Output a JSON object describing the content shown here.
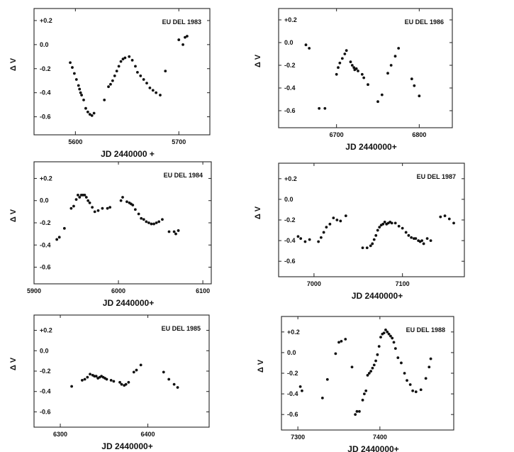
{
  "chart_data": [
    {
      "type": "scatter",
      "title": "EU DEL 1983",
      "xlabel": "JD 2440000 +",
      "ylabel": "Δ V",
      "xlim": [
        5560,
        5730
      ],
      "ylim": [
        0.3,
        -0.75
      ],
      "xticks": [
        5600,
        5700
      ],
      "yticks": [
        -0.6,
        -0.4,
        -0.2,
        0.0,
        0.2
      ],
      "ytick_labels": [
        "-0.6",
        "-0.4",
        "-0.2",
        "0.0",
        "+0.2"
      ],
      "x": [
        5595,
        5597,
        5599,
        5601,
        5603,
        5604,
        5605,
        5606,
        5608,
        5610,
        5612,
        5614,
        5616,
        5618,
        5628,
        5632,
        5634,
        5636,
        5638,
        5640,
        5642,
        5644,
        5646,
        5648,
        5652,
        5655,
        5658,
        5660,
        5663,
        5666,
        5669,
        5672,
        5675,
        5678,
        5682,
        5687,
        5700,
        5704,
        5706,
        5708
      ],
      "y": [
        -0.15,
        -0.19,
        -0.24,
        -0.29,
        -0.34,
        -0.37,
        -0.4,
        -0.42,
        -0.46,
        -0.53,
        -0.56,
        -0.58,
        -0.59,
        -0.57,
        -0.46,
        -0.35,
        -0.33,
        -0.3,
        -0.26,
        -0.22,
        -0.18,
        -0.14,
        -0.12,
        -0.11,
        -0.1,
        -0.13,
        -0.18,
        -0.23,
        -0.26,
        -0.29,
        -0.32,
        -0.36,
        -0.38,
        -0.4,
        -0.42,
        -0.22,
        0.04,
        0.0,
        0.06,
        0.07
      ]
    },
    {
      "type": "scatter",
      "title": "EU DEL 1986",
      "xlabel": "JD 2440000+",
      "ylabel": "Δ V",
      "xlim": [
        6630,
        6840
      ],
      "ylim": [
        0.3,
        -0.75
      ],
      "xticks": [
        6700,
        6800
      ],
      "yticks": [
        -0.6,
        -0.4,
        -0.2,
        0.0,
        0.2
      ],
      "ytick_labels": [
        "-0.6",
        "-0.4",
        "-0.2",
        "0.0",
        "+0.2"
      ],
      "x": [
        6663,
        6667,
        6679,
        6686,
        6700,
        6702,
        6704,
        6707,
        6710,
        6712,
        6717,
        6719,
        6721,
        6722,
        6724,
        6726,
        6731,
        6733,
        6738,
        6750,
        6755,
        6762,
        6766,
        6771,
        6775,
        6791,
        6794,
        6800
      ],
      "y": [
        -0.02,
        -0.05,
        -0.58,
        -0.58,
        -0.28,
        -0.22,
        -0.18,
        -0.14,
        -0.1,
        -0.07,
        -0.17,
        -0.2,
        -0.22,
        -0.24,
        -0.23,
        -0.25,
        -0.28,
        -0.31,
        -0.37,
        -0.52,
        -0.46,
        -0.27,
        -0.2,
        -0.12,
        -0.05,
        -0.32,
        -0.38,
        -0.47
      ]
    },
    {
      "type": "scatter",
      "title": "EU DEL 1984",
      "xlabel": "JD 2440000+",
      "ylabel": "Δ V",
      "xlim": [
        5900,
        6110
      ],
      "ylim": [
        0.35,
        -0.75
      ],
      "xticks": [
        5900,
        6000,
        6100
      ],
      "yticks": [
        -0.6,
        -0.4,
        -0.2,
        0.0,
        0.2
      ],
      "ytick_labels": [
        "-0.6",
        "-0.4",
        "-0.2",
        "0.0",
        "+0.2"
      ],
      "x": [
        5927,
        5930,
        5936,
        5944,
        5947,
        5950,
        5952,
        5954,
        5956,
        5958,
        5960,
        5962,
        5964,
        5966,
        5969,
        5972,
        5976,
        5981,
        5987,
        5990,
        6003,
        6005,
        6010,
        6013,
        6015,
        6017,
        6020,
        6024,
        6027,
        6030,
        6033,
        6036,
        6039,
        6042,
        6045,
        6048,
        6052,
        6060,
        6066,
        6068,
        6071
      ],
      "y": [
        -0.35,
        -0.33,
        -0.25,
        -0.07,
        -0.05,
        0.01,
        0.05,
        0.03,
        0.05,
        0.05,
        0.05,
        0.03,
        0.0,
        -0.02,
        -0.06,
        -0.1,
        -0.09,
        -0.07,
        -0.07,
        -0.06,
        0.0,
        0.03,
        -0.01,
        -0.02,
        -0.03,
        -0.04,
        -0.08,
        -0.12,
        -0.16,
        -0.17,
        -0.19,
        -0.2,
        -0.21,
        -0.21,
        -0.2,
        -0.19,
        -0.17,
        -0.28,
        -0.28,
        -0.3,
        -0.27
      ]
    },
    {
      "type": "scatter",
      "title": "EU DEL 1987",
      "xlabel": "JD 2440000+",
      "ylabel": "Δ V",
      "xlim": [
        6960,
        7170
      ],
      "ylim": [
        0.35,
        -0.75
      ],
      "xticks": [
        7000,
        7100
      ],
      "yticks": [
        -0.6,
        -0.4,
        -0.2,
        0.0,
        0.2
      ],
      "ytick_labels": [
        "-0.6",
        "-0.4",
        "-0.2",
        "0.0",
        "+0.2"
      ],
      "x": [
        6982,
        6985,
        6990,
        6995,
        7005,
        7008,
        7011,
        7014,
        7018,
        7022,
        7026,
        7030,
        7036,
        7055,
        7060,
        7064,
        7066,
        7068,
        7070,
        7072,
        7074,
        7076,
        7078,
        7080,
        7082,
        7084,
        7086,
        7088,
        7092,
        7096,
        7100,
        7104,
        7107,
        7110,
        7113,
        7115,
        7118,
        7120,
        7122,
        7124,
        7128,
        7132,
        7143,
        7148,
        7153,
        7158
      ],
      "y": [
        -0.36,
        -0.38,
        -0.41,
        -0.39,
        -0.41,
        -0.37,
        -0.32,
        -0.27,
        -0.24,
        -0.18,
        -0.2,
        -0.21,
        -0.16,
        -0.47,
        -0.47,
        -0.45,
        -0.43,
        -0.39,
        -0.35,
        -0.3,
        -0.27,
        -0.25,
        -0.24,
        -0.22,
        -0.24,
        -0.23,
        -0.22,
        -0.23,
        -0.23,
        -0.26,
        -0.28,
        -0.32,
        -0.35,
        -0.37,
        -0.38,
        -0.38,
        -0.4,
        -0.41,
        -0.4,
        -0.43,
        -0.38,
        -0.4,
        -0.17,
        -0.16,
        -0.19,
        -0.23
      ]
    },
    {
      "type": "scatter",
      "title": "EU DEL 1985",
      "xlabel": "JD 2440000+",
      "ylabel": "Δ V",
      "xlim": [
        6270,
        6470
      ],
      "ylim": [
        0.35,
        -0.75
      ],
      "xticks": [
        6300,
        6400
      ],
      "yticks": [
        -0.6,
        -0.4,
        -0.2,
        0.0,
        0.2
      ],
      "ytick_labels": [
        "-0.6",
        "-0.4",
        "-0.2",
        "0.0",
        "+0.2"
      ],
      "x": [
        6313,
        6325,
        6328,
        6331,
        6334,
        6337,
        6339,
        6341,
        6343,
        6345,
        6347,
        6349,
        6351,
        6353,
        6358,
        6361,
        6368,
        6370,
        6373,
        6375,
        6378,
        6384,
        6387,
        6392,
        6418,
        6424,
        6430,
        6434
      ],
      "y": [
        -0.35,
        -0.29,
        -0.28,
        -0.26,
        -0.23,
        -0.24,
        -0.25,
        -0.25,
        -0.27,
        -0.26,
        -0.25,
        -0.26,
        -0.27,
        -0.28,
        -0.29,
        -0.3,
        -0.31,
        -0.33,
        -0.34,
        -0.33,
        -0.31,
        -0.21,
        -0.19,
        -0.14,
        -0.21,
        -0.28,
        -0.33,
        -0.36
      ]
    },
    {
      "type": "scatter",
      "title": "EU DEL 1988",
      "xlabel": "JD 2440000+",
      "ylabel": "Δ V",
      "xlim": [
        7280,
        7490
      ],
      "ylim": [
        0.35,
        -0.75
      ],
      "xticks": [
        7300,
        7400
      ],
      "yticks": [
        -0.6,
        -0.4,
        -0.2,
        0.0,
        0.2
      ],
      "ytick_labels": [
        "-0.6",
        "-0.4",
        "-0.2",
        "0.0",
        "+0.2"
      ],
      "x": [
        7303,
        7305,
        7330,
        7336,
        7346,
        7350,
        7353,
        7358,
        7366,
        7370,
        7372,
        7375,
        7379,
        7381,
        7383,
        7385,
        7387,
        7389,
        7391,
        7393,
        7395,
        7397,
        7399,
        7401,
        7403,
        7405,
        7407,
        7409,
        7411,
        7413,
        7415,
        7417,
        7419,
        7422,
        7426,
        7430,
        7433,
        7437,
        7440,
        7444,
        7450,
        7456,
        7460,
        7462
      ],
      "y": [
        -0.33,
        -0.37,
        -0.44,
        -0.26,
        -0.01,
        0.1,
        0.11,
        0.13,
        -0.14,
        -0.6,
        -0.57,
        -0.57,
        -0.46,
        -0.4,
        -0.37,
        -0.22,
        -0.2,
        -0.18,
        -0.15,
        -0.12,
        -0.08,
        -0.02,
        0.06,
        0.15,
        0.18,
        0.19,
        0.22,
        0.2,
        0.18,
        0.16,
        0.14,
        0.1,
        0.04,
        -0.05,
        -0.1,
        -0.2,
        -0.27,
        -0.31,
        -0.37,
        -0.38,
        -0.36,
        -0.25,
        -0.14,
        -0.06
      ]
    }
  ]
}
